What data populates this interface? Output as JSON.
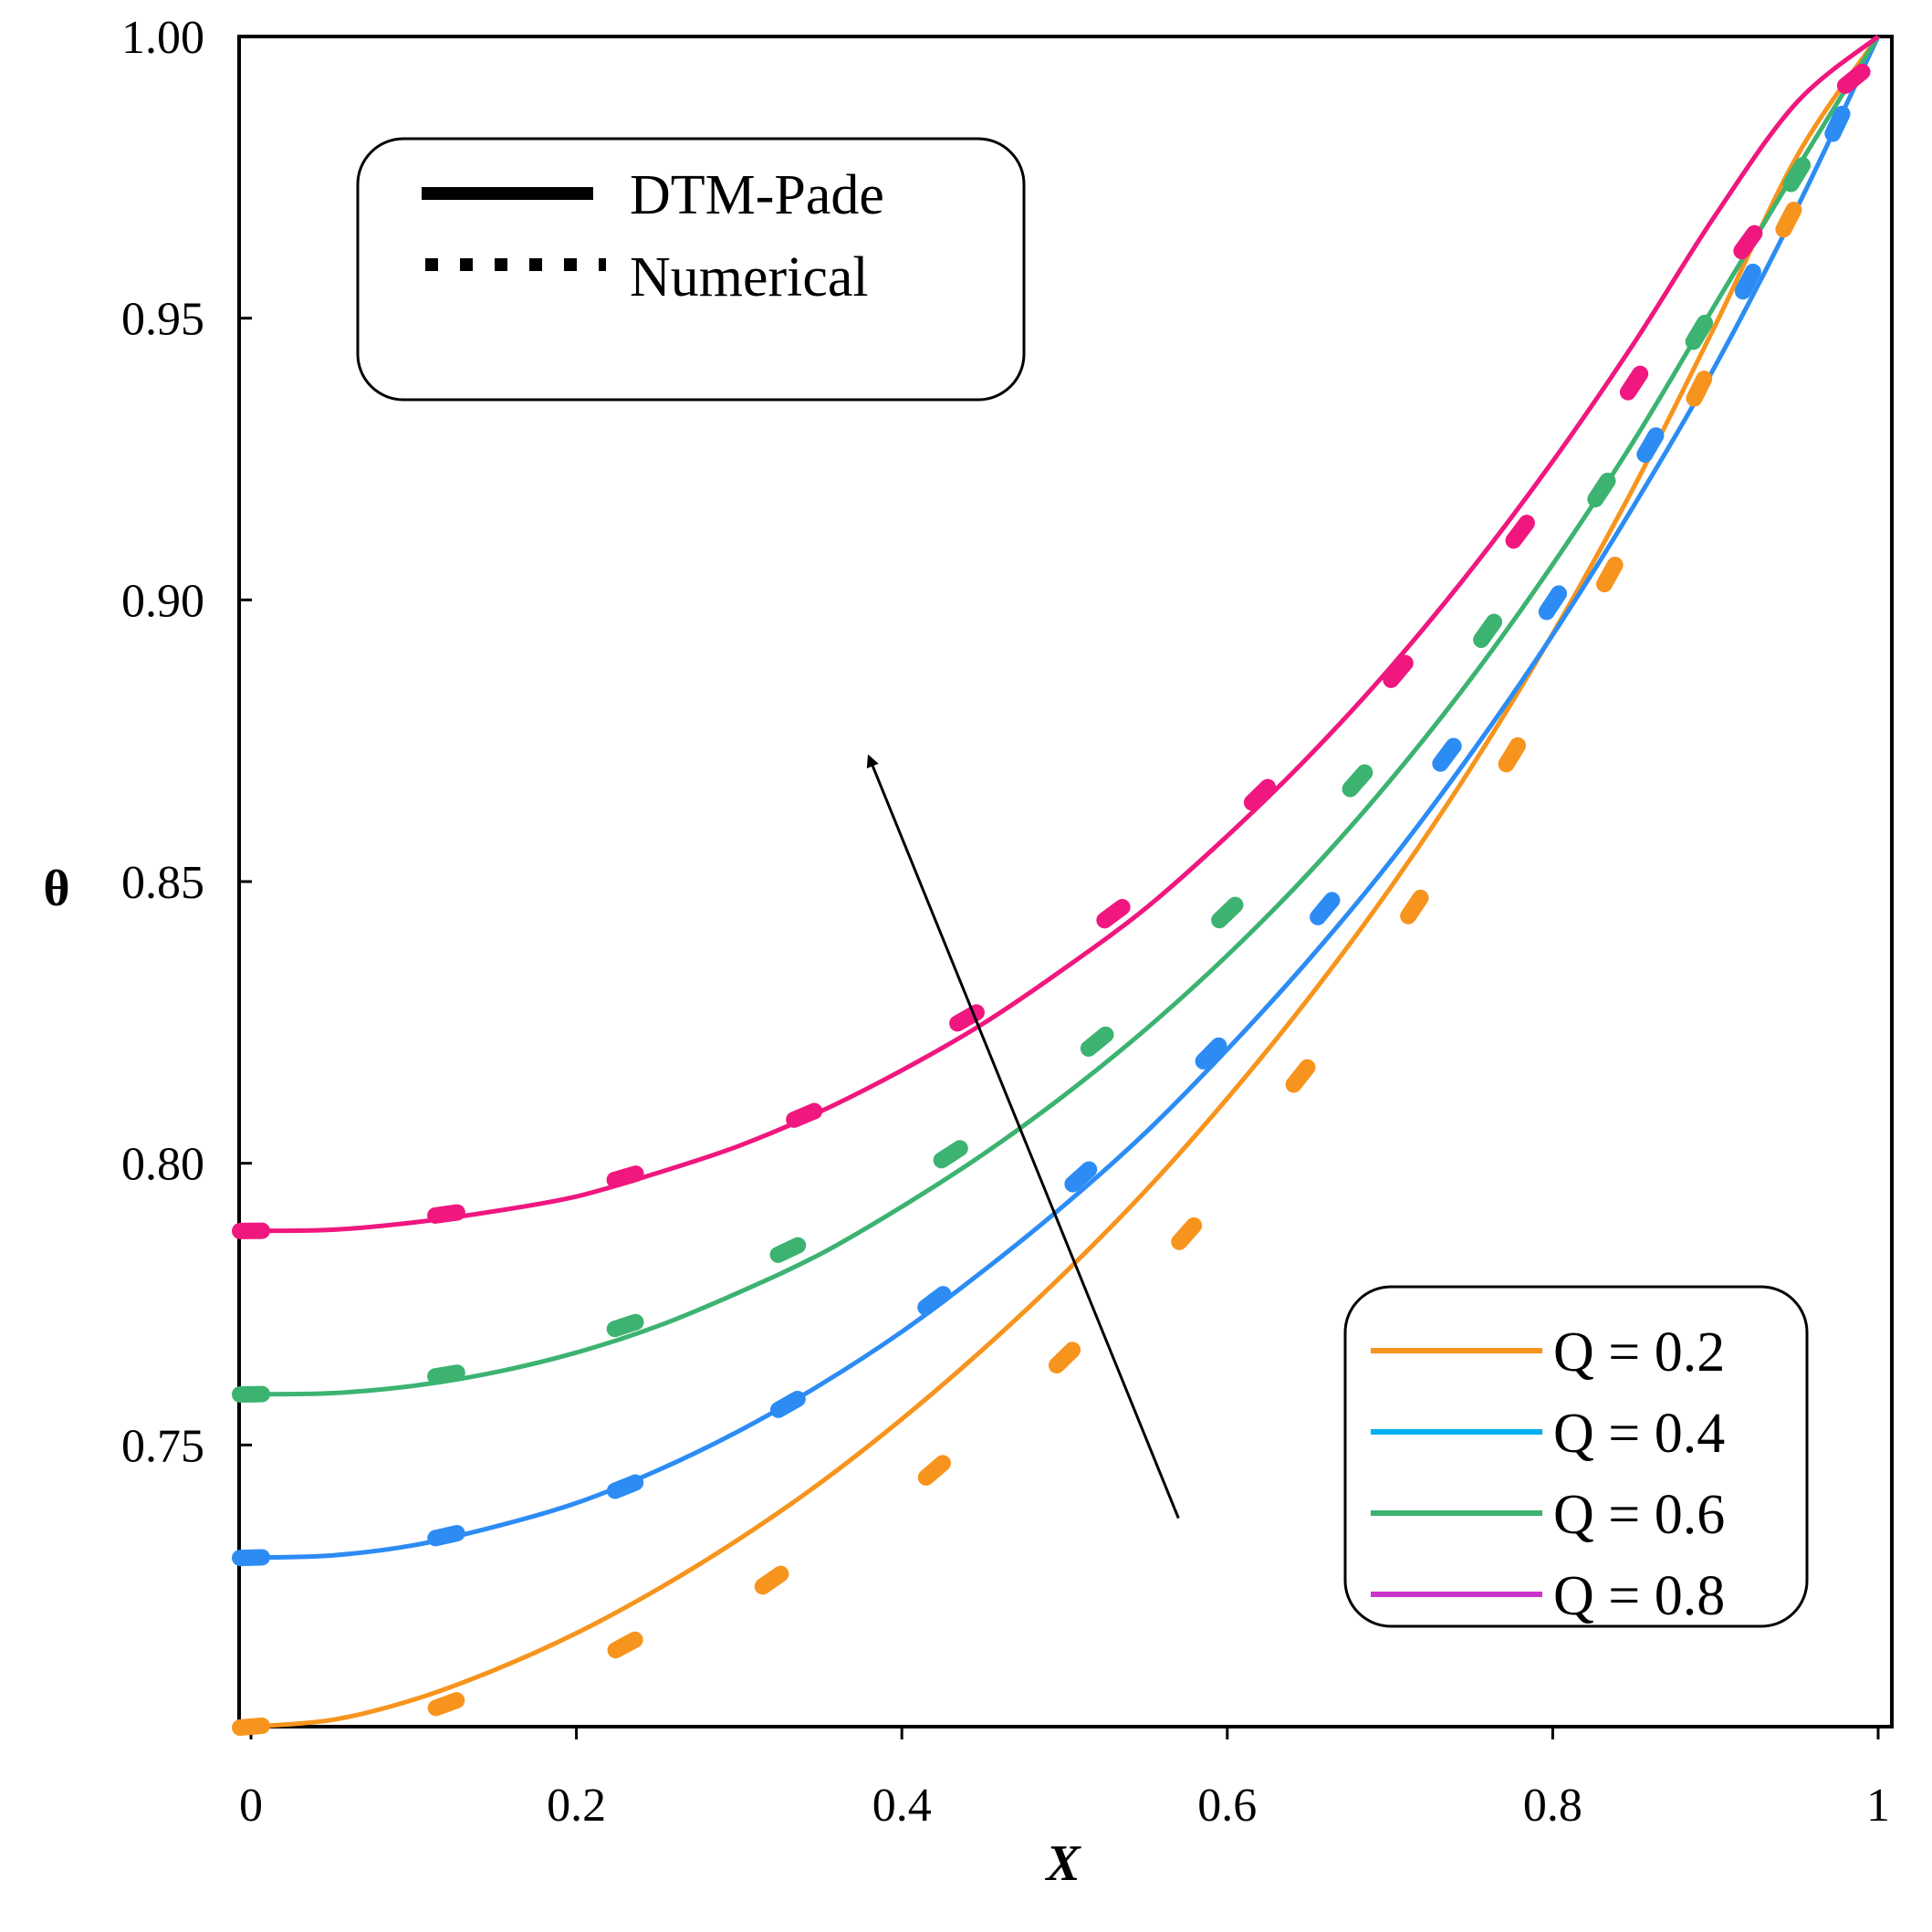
{
  "chart_data": {
    "type": "line",
    "xlabel": "X",
    "ylabel": "θ",
    "xlim": [
      0,
      1
    ],
    "ylim": [
      0.7,
      1.0
    ],
    "x_ticks": [
      "0",
      "0.2",
      "0.4",
      "0.6",
      "0.8",
      "1"
    ],
    "x_tick_values": [
      0,
      0.2,
      0.4,
      0.6,
      0.8,
      1.0
    ],
    "y_ticks": [
      "0.75",
      "0.80",
      "0.85",
      "0.90",
      "0.95",
      "1.00"
    ],
    "y_tick_values": [
      0.75,
      0.8,
      0.85,
      0.9,
      0.95,
      1.0
    ],
    "method_legend": [
      {
        "label": "DTM-Pade",
        "style": "solid"
      },
      {
        "label": "Numerical",
        "style": "dotted"
      }
    ],
    "series_legend_placement": "bottom-right",
    "method_legend_placement": "top-left",
    "arrow": {
      "from": [
        0.57,
        0.737
      ],
      "to": [
        0.38,
        0.872
      ],
      "meaning": "increasing Q"
    },
    "series": [
      {
        "name": "Q = 0.2",
        "legend_color": "#F7941D",
        "curve_color": "#F7941D",
        "x": [
          0.0,
          0.05,
          0.1,
          0.15,
          0.2,
          0.25,
          0.3,
          0.35,
          0.4,
          0.45,
          0.5,
          0.55,
          0.6,
          0.65,
          0.7,
          0.75,
          0.8,
          0.85,
          0.9,
          0.95,
          1.0
        ],
        "values": [
          0.7,
          0.7012,
          0.7048,
          0.7101,
          0.7166,
          0.7244,
          0.7333,
          0.7433,
          0.7546,
          0.767,
          0.7805,
          0.7952,
          0.8115,
          0.8293,
          0.8488,
          0.8703,
          0.894,
          0.9201,
          0.9488,
          0.9787,
          1.0
        ],
        "numerical_x": [
          0.0,
          0.12,
          0.23,
          0.32,
          0.42,
          0.5,
          0.575,
          0.645,
          0.715,
          0.775,
          0.835,
          0.89,
          0.945
        ],
        "numerical_values": [
          0.7,
          0.704,
          0.7145,
          0.726,
          0.7455,
          0.7655,
          0.7875,
          0.8155,
          0.8455,
          0.8725,
          0.9045,
          0.9375,
          0.9675
        ]
      },
      {
        "name": "Q = 0.4",
        "legend_color": "#00AEEF",
        "curve_color": "#2C8CF4",
        "x": [
          0.0,
          0.05,
          0.1,
          0.15,
          0.2,
          0.25,
          0.3,
          0.35,
          0.4,
          0.45,
          0.5,
          0.55,
          0.6,
          0.65,
          0.7,
          0.75,
          0.8,
          0.85,
          0.9,
          0.95,
          1.0
        ],
        "values": [
          0.73,
          0.7304,
          0.7322,
          0.7355,
          0.7397,
          0.7455,
          0.7525,
          0.7607,
          0.7701,
          0.7809,
          0.7926,
          0.8055,
          0.8202,
          0.8361,
          0.8535,
          0.8728,
          0.8938,
          0.9168,
          0.9416,
          0.9695,
          1.0
        ],
        "numerical_x": [
          0.0,
          0.12,
          0.23,
          0.33,
          0.42,
          0.51,
          0.59,
          0.66,
          0.735,
          0.8,
          0.86,
          0.92,
          0.975
        ],
        "numerical_values": [
          0.73,
          0.7339,
          0.7426,
          0.7572,
          0.7756,
          0.7976,
          0.8195,
          0.8452,
          0.8725,
          0.8995,
          0.9275,
          0.9565,
          0.9845
        ]
      },
      {
        "name": "Q = 0.6",
        "legend_color": "#3CB371",
        "curve_color": "#3CB371",
        "x": [
          0.0,
          0.05,
          0.1,
          0.15,
          0.2,
          0.25,
          0.3,
          0.35,
          0.4,
          0.45,
          0.5,
          0.55,
          0.6,
          0.65,
          0.7,
          0.75,
          0.8,
          0.85,
          0.9,
          0.95,
          1.0
        ],
        "values": [
          0.759,
          0.7592,
          0.7605,
          0.7629,
          0.7664,
          0.7711,
          0.7771,
          0.7839,
          0.7923,
          0.8016,
          0.8121,
          0.8238,
          0.8369,
          0.8515,
          0.8679,
          0.8861,
          0.9063,
          0.9283,
          0.9525,
          0.9765,
          1.0
        ],
        "numerical_x": [
          0.0,
          0.12,
          0.23,
          0.33,
          0.43,
          0.52,
          0.6,
          0.68,
          0.76,
          0.83,
          0.89,
          0.95
        ],
        "numerical_values": [
          0.759,
          0.7625,
          0.7712,
          0.7846,
          0.8016,
          0.8216,
          0.8445,
          0.8679,
          0.8945,
          0.9195,
          0.9475,
          0.9755
        ]
      },
      {
        "name": "Q = 0.8",
        "legend_color": "#CC33CC",
        "curve_color": "#F0177F",
        "x": [
          0.0,
          0.05,
          0.1,
          0.15,
          0.2,
          0.25,
          0.3,
          0.35,
          0.4,
          0.45,
          0.5,
          0.55,
          0.6,
          0.65,
          0.7,
          0.75,
          0.8,
          0.85,
          0.9,
          0.95,
          1.0
        ],
        "values": [
          0.788,
          0.7882,
          0.7895,
          0.7915,
          0.7941,
          0.7983,
          0.8031,
          0.8092,
          0.8165,
          0.8248,
          0.8346,
          0.8453,
          0.8581,
          0.8722,
          0.8879,
          0.9054,
          0.9246,
          0.9456,
          0.9683,
          0.9883,
          1.0
        ],
        "numerical_x": [
          0.0,
          0.12,
          0.23,
          0.34,
          0.44,
          0.53,
          0.62,
          0.705,
          0.78,
          0.85,
          0.92,
          0.985
        ],
        "numerical_values": [
          0.788,
          0.791,
          0.7976,
          0.8085,
          0.8258,
          0.8443,
          0.8654,
          0.8873,
          0.9121,
          0.9385,
          0.9635,
          0.9925
        ]
      }
    ]
  }
}
